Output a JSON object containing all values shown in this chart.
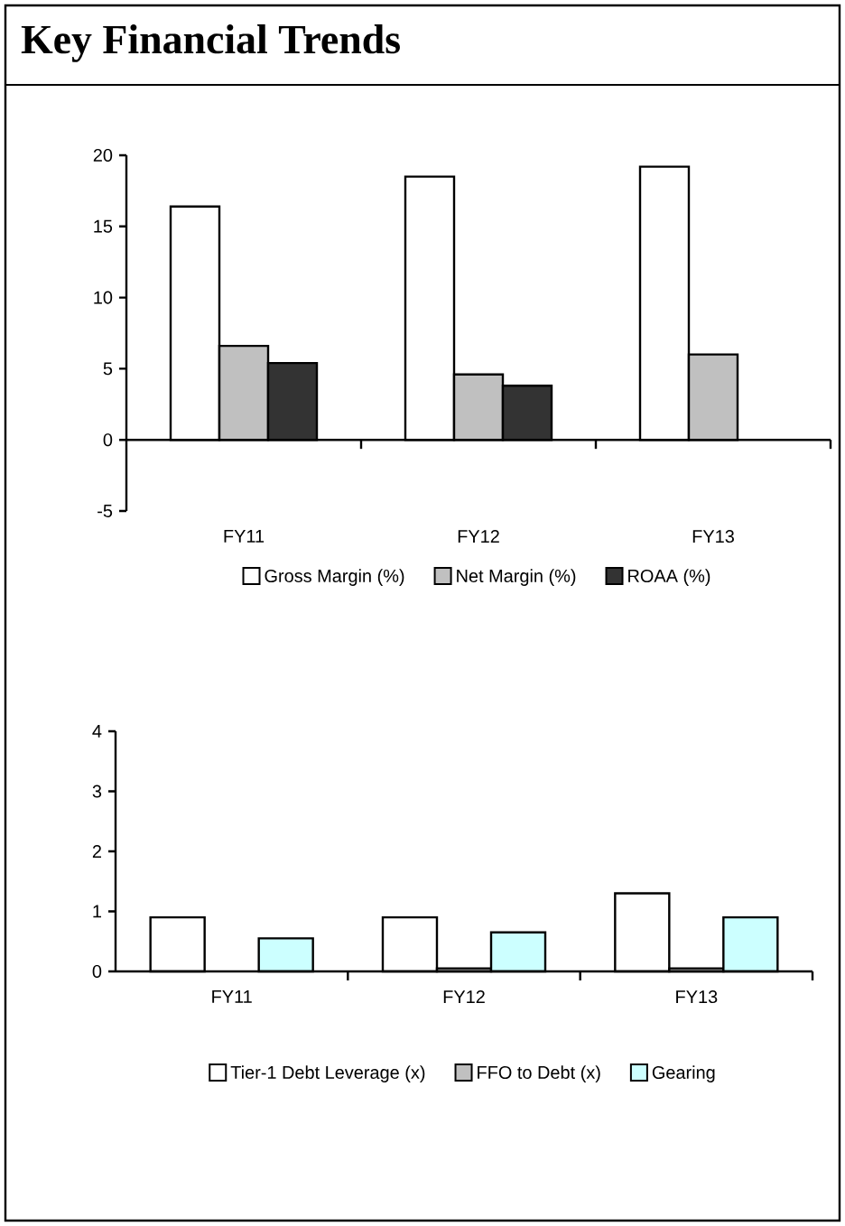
{
  "chart_data": [
    {
      "type": "bar",
      "title": "Key Financial Trends",
      "categories": [
        "FY11",
        "FY12",
        "FY13"
      ],
      "series": [
        {
          "name": "Gross Margin (%)",
          "color": "#ffffff",
          "values": [
            16.4,
            18.5,
            19.2
          ]
        },
        {
          "name": "Net Margin (%)",
          "color": "#c0c0c0",
          "values": [
            6.6,
            4.6,
            6.0
          ]
        },
        {
          "name": "ROAA (%)",
          "color": "#333333",
          "values": [
            5.4,
            3.8,
            null
          ]
        }
      ],
      "ylim": [
        -5,
        20
      ],
      "yticks": [
        -5,
        0,
        5,
        10,
        15,
        20
      ],
      "legend": "bottom"
    },
    {
      "type": "bar",
      "categories": [
        "FY11",
        "FY12",
        "FY13"
      ],
      "series": [
        {
          "name": "Tier-1 Debt Leverage (x)",
          "color": "#ffffff",
          "values": [
            0.9,
            0.9,
            1.3
          ]
        },
        {
          "name": "FFO to Debt (x)",
          "color": "#c0c0c0",
          "values": [
            null,
            0.05,
            0.05
          ]
        },
        {
          "name": "Gearing",
          "color": "#ccffff",
          "values": [
            0.55,
            0.65,
            0.9
          ]
        }
      ],
      "ylim": [
        0,
        4
      ],
      "yticks": [
        0,
        1,
        2,
        3,
        4
      ],
      "legend": "bottom"
    }
  ]
}
